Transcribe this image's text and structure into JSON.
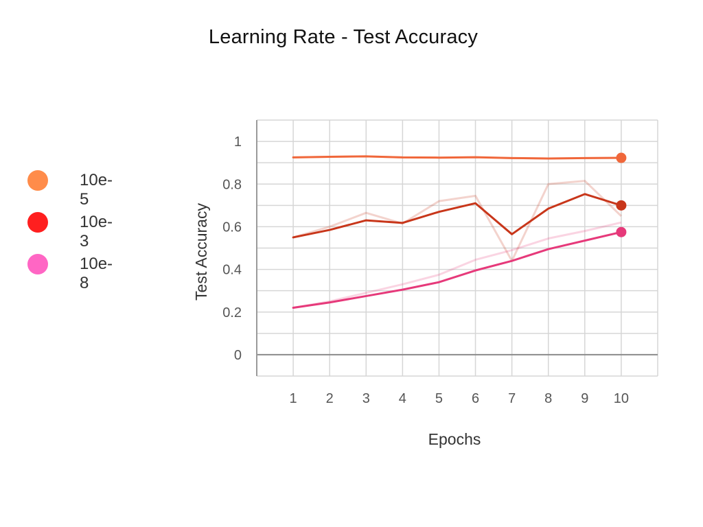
{
  "chart_data": {
    "type": "line",
    "title": "Learning Rate - Test Accuracy",
    "xlabel": "Epochs",
    "ylabel": "Test Accuracy",
    "x": [
      1,
      2,
      3,
      4,
      5,
      6,
      7,
      8,
      9,
      10
    ],
    "xlim": [
      0,
      11
    ],
    "ylim": [
      -0.1,
      1.1
    ],
    "yticks": [
      0,
      0.2,
      0.4,
      0.6,
      0.8,
      1
    ],
    "ytick_labels": [
      "0",
      "0.2",
      "0.4",
      "0.6",
      "0.8",
      "1"
    ],
    "grid": true,
    "legend_position": "left",
    "series": [
      {
        "name": "10e-5",
        "color": "#f0673a",
        "legend_color": "#ff8c4a",
        "values": [
          0.925,
          0.928,
          0.93,
          0.925,
          0.924,
          0.926,
          0.922,
          0.92,
          0.922,
          0.923
        ],
        "raw_values": [
          0.925,
          0.928,
          0.93,
          0.925,
          0.924,
          0.926,
          0.922,
          0.92,
          0.922,
          0.923
        ]
      },
      {
        "name": "10e-3",
        "color": "#c8361a",
        "legend_color": "#ff1f1f",
        "values": [
          0.55,
          0.585,
          0.63,
          0.618,
          0.67,
          0.71,
          0.565,
          0.685,
          0.753,
          0.7
        ],
        "raw_values": [
          0.55,
          0.6,
          0.665,
          0.615,
          0.72,
          0.745,
          0.44,
          0.8,
          0.815,
          0.65
        ]
      },
      {
        "name": "10e-8",
        "color": "#e6397a",
        "legend_color": "#ff66c4",
        "values": [
          0.22,
          0.245,
          0.275,
          0.305,
          0.34,
          0.395,
          0.44,
          0.495,
          0.535,
          0.575
        ],
        "raw_values": [
          0.22,
          0.25,
          0.29,
          0.33,
          0.375,
          0.445,
          0.49,
          0.545,
          0.58,
          0.62
        ]
      }
    ]
  }
}
